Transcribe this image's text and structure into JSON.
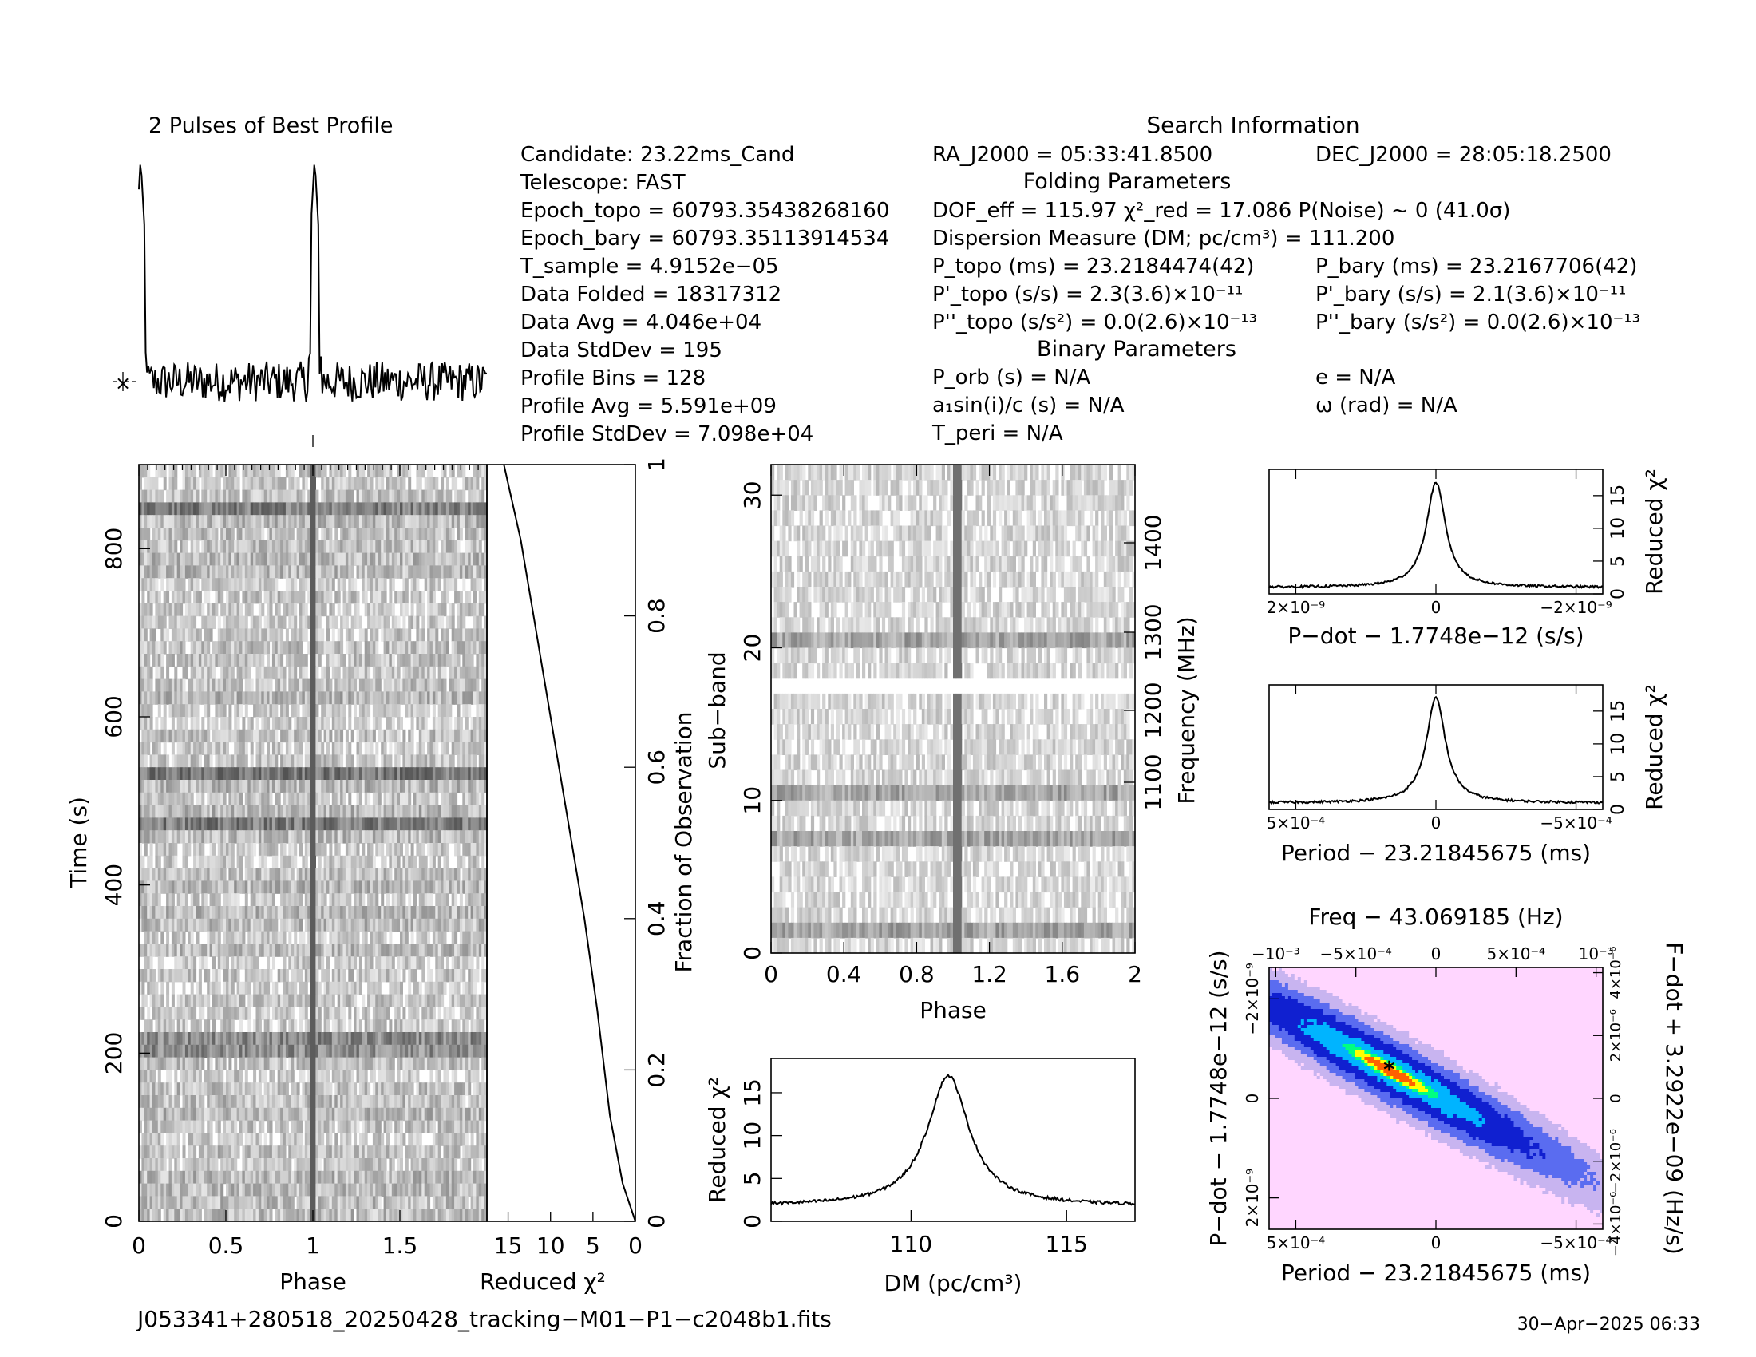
{
  "colors": {
    "ink": "#000000",
    "background": "#ffffff"
  },
  "info": {
    "title": "Search Information",
    "lines": [
      "Candidate:  23.22ms_Cand",
      "Telescope:  FAST",
      "Epoch_topo = 60793.35438268160",
      "Epoch_bary = 60793.35113914534",
      "T_sample      =  4.9152e−05",
      "Data Folded    =  18317312",
      "Data Avg       =  4.046e+04",
      "Data StdDev    =  195",
      "Profile Bins   =  128",
      "Profile Avg    =  5.591e+09",
      "Profile StdDev =  7.098e+04"
    ],
    "ra": "RA_J2000 = 05:33:41.8500",
    "dec": "DEC_J2000 = 28:05:18.2500",
    "folding_title": "Folding Parameters",
    "folding_lines": [
      "DOF_eff = 115.97  χ²_red = 17.086  P(Noise) ~ 0    (41.0σ)",
      "Dispersion Measure (DM; pc/cm³) = 111.200",
      "P_topo (ms) =  23.2184474(42)",
      "P'_topo (s/s) =  2.3(3.6)×10⁻¹¹",
      "P''_topo (s/s²) = 0.0(2.6)×10⁻¹³"
    ],
    "bary_lines": [
      "P_bary (ms) =  23.2167706(42)",
      "P'_bary (s/s) =  2.1(3.6)×10⁻¹¹",
      "P''_bary (s/s²) = 0.0(2.6)×10⁻¹³"
    ],
    "binary_title": "Binary Parameters",
    "binary_lines": [
      "P_orb (s) = N/A",
      "a₁sin(i)/c (s) = N/A",
      "T_peri = N/A"
    ],
    "binary_right": [
      "e = N/A",
      "ω (rad) = N/A"
    ]
  },
  "footer": {
    "filename": "J053341+280518_20250428_tracking−M01−P1−c2048b1.fits",
    "date": "30−Apr−2025 06:33"
  },
  "chart_data": [
    {
      "id": "profile",
      "type": "line",
      "title": "2 Pulses of Best Profile",
      "x": "phase 0–2, two identical pulse cycles",
      "pulse_phase": [
        0.01,
        1.01
      ],
      "baseline": 0.0,
      "peak": 1.0,
      "ylim": [
        -0.15,
        1.05
      ]
    },
    {
      "id": "time-phase",
      "type": "heatmap",
      "xlabel": "Phase",
      "ylabel": "Time (s)",
      "xlim": [
        0,
        2
      ],
      "ylim": [
        0,
        900
      ],
      "xticks": [
        "0",
        "0.5",
        "1",
        "1.5"
      ],
      "yticks": [
        "0",
        "200",
        "400",
        "600",
        "800"
      ],
      "pulse_phase": 1.0,
      "dark_rows_time": [
        210,
        470,
        530,
        850
      ]
    },
    {
      "id": "time-chi2",
      "type": "line",
      "xlabel": "Reduced χ²",
      "ylabel": "Fraction of Observation",
      "xticks": [
        "15",
        "10",
        "5",
        "0"
      ],
      "yticks": [
        "0",
        "0.2",
        "0.4",
        "0.6",
        "0.8",
        "1"
      ],
      "x": [
        0,
        1.5,
        3,
        4.5,
        6,
        7.5,
        9,
        10.5,
        12,
        13.5,
        15.5
      ],
      "y": [
        0,
        0.05,
        0.14,
        0.28,
        0.4,
        0.5,
        0.6,
        0.7,
        0.8,
        0.9,
        1.0
      ]
    },
    {
      "id": "subband-phase",
      "type": "heatmap",
      "xlabel": "Phase",
      "ylabel": "Sub−band",
      "right_label": "Frequency (MHz)",
      "xlim": [
        0,
        2
      ],
      "ylim": [
        0,
        32
      ],
      "xticks": [
        "0",
        "0.4",
        "0.8",
        "1.2",
        "1.6",
        "2"
      ],
      "yticks": [
        "0",
        "10",
        "20",
        "30"
      ],
      "freq_ticks": [
        "1100",
        "1200",
        "1300",
        "1400"
      ],
      "pulse_phase": 1.02,
      "masked_subband": 17,
      "dark_subbands": [
        1,
        7,
        10,
        20
      ]
    },
    {
      "id": "dm-chi2",
      "type": "line",
      "xlabel": "DM (pc/cm³)",
      "ylabel": "Reduced χ²",
      "xlim": [
        105.5,
        117.2
      ],
      "ylim": [
        0,
        19
      ],
      "xticks": [
        "110",
        "115"
      ],
      "yticks": [
        "0",
        "5",
        "10",
        "15"
      ],
      "peak_x": 111.2,
      "peak_y": 17.0,
      "floor_y": 1.8
    },
    {
      "id": "pdot-chi2",
      "type": "line",
      "xlabel": "P−dot − 1.7748e−12 (s/s)",
      "ylabel": "Reduced χ²",
      "xlim": [
        2.6e-09,
        -2.6e-09
      ],
      "ylim": [
        0,
        19
      ],
      "xticks": [
        "2×10⁻⁹",
        "0",
        "−2×10⁻⁹"
      ],
      "yticks": [
        "0",
        "5",
        "10",
        "15"
      ],
      "peak_y": 17.0,
      "floor_y": 1.0
    },
    {
      "id": "period-chi2",
      "type": "line",
      "xlabel": "Period − 23.21845675 (ms)",
      "ylabel": "Reduced χ²",
      "xlim": [
        0.00062,
        -0.00062
      ],
      "ylim": [
        0,
        19
      ],
      "xticks": [
        "5×10⁻⁴",
        "0",
        "−5×10⁻⁴"
      ],
      "yticks": [
        "0",
        "5",
        "10",
        "15"
      ],
      "peak_y": 17.0,
      "floor_y": 1.0
    },
    {
      "id": "period-pdot",
      "type": "heatmap",
      "title": "Freq − 43.069185 (Hz)",
      "xlabel": "Period − 23.21845675 (ms)",
      "ylabel": "P−dot − 1.7748e−12 (s/s)",
      "right_label": "F−dot + 3.2922e−09 (Hz/s)",
      "xticks": [
        "5×10⁻⁴",
        "0",
        "−5×10⁻⁴"
      ],
      "top_ticks": [
        "−10⁻³",
        "−5×10⁻⁴",
        "0",
        "5×10⁻⁴",
        "10⁻³"
      ],
      "yticks": [
        "2×10⁻⁹",
        "0",
        "−2×10⁻⁹"
      ],
      "right_ticks": [
        "−4×10⁻⁶",
        "−2×10⁻⁶",
        "0",
        "2×10⁻⁶",
        "4×10⁻⁶"
      ],
      "colors": [
        "#ffd6ff",
        "#c8b4f0",
        "#5a6cf0",
        "#1020d0",
        "#00b4ff",
        "#00ff80",
        "#ffff00",
        "#ff6000",
        "#000000"
      ]
    }
  ]
}
